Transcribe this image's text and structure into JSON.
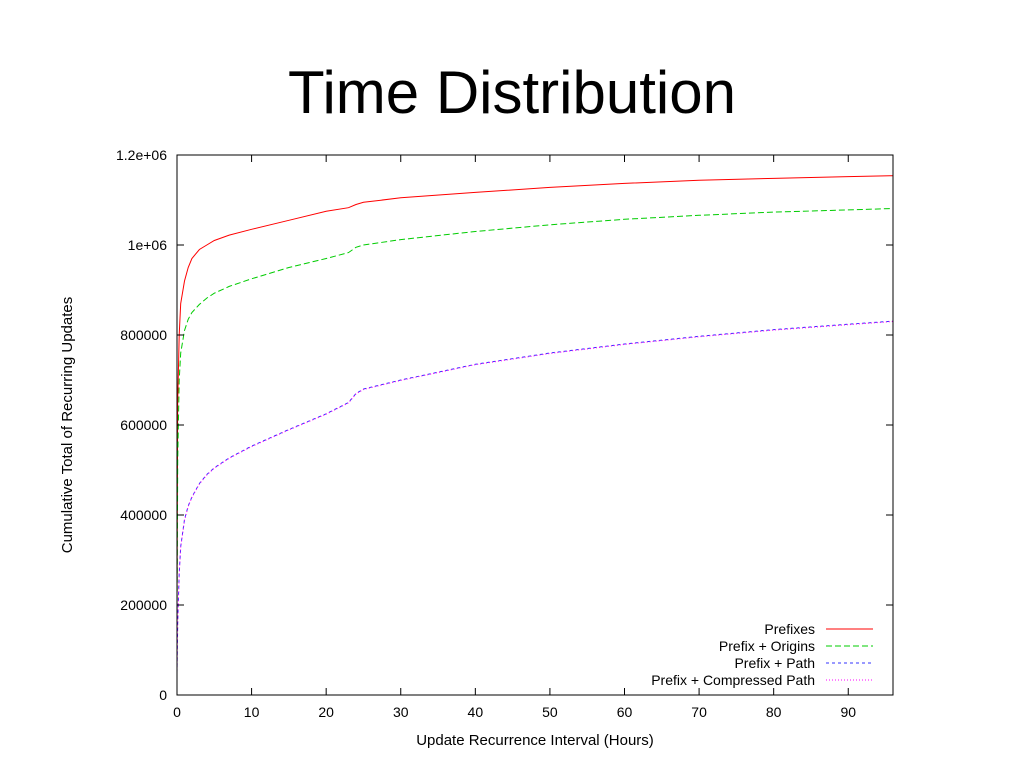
{
  "slide": {
    "title": "Time Distribution"
  },
  "chart_data": {
    "type": "line",
    "title": "Time Distribution",
    "xlabel": "Update Recurrence Interval (Hours)",
    "ylabel": "Cumulative Total of Recurring Updates",
    "xlim": [
      0,
      96
    ],
    "ylim": [
      0,
      1200000
    ],
    "x_ticks": [
      0,
      10,
      20,
      30,
      40,
      50,
      60,
      70,
      80,
      90
    ],
    "y_ticks": [
      0,
      200000,
      400000,
      600000,
      800000,
      1000000,
      1200000
    ],
    "y_tick_labels": [
      "0",
      "200000",
      "400000",
      "600000",
      "800000",
      "1e+06",
      "1.2e+06"
    ],
    "grid": false,
    "legend_position": "bottom-right",
    "series": [
      {
        "name": "Prefixes",
        "color": "#ff0000",
        "dash": "solid",
        "x": [
          0,
          0.1,
          0.3,
          0.5,
          1,
          1.5,
          2,
          3,
          4,
          5,
          7,
          10,
          15,
          20,
          23,
          24,
          25,
          30,
          40,
          50,
          60,
          70,
          80,
          90,
          96
        ],
        "y": [
          200000,
          650000,
          800000,
          870000,
          920000,
          950000,
          970000,
          990000,
          1000000,
          1010000,
          1022000,
          1035000,
          1055000,
          1075000,
          1083000,
          1090000,
          1095000,
          1105000,
          1117000,
          1128000,
          1137000,
          1144000,
          1148000,
          1152000,
          1154000
        ]
      },
      {
        "name": "Prefix + Origins",
        "color": "#00cc00",
        "dash": "dashed",
        "x": [
          0,
          0.1,
          0.3,
          0.5,
          1,
          1.5,
          2,
          3,
          4,
          5,
          7,
          10,
          15,
          20,
          23,
          24,
          25,
          30,
          40,
          50,
          60,
          70,
          80,
          90,
          96
        ],
        "y": [
          150000,
          520000,
          700000,
          760000,
          810000,
          835000,
          850000,
          868000,
          882000,
          893000,
          908000,
          925000,
          950000,
          970000,
          983000,
          995000,
          1000000,
          1012000,
          1030000,
          1045000,
          1057000,
          1066000,
          1073000,
          1078000,
          1081000
        ]
      },
      {
        "name": "Prefix + Path",
        "color": "#3333ff",
        "dash": "dotted",
        "x": [
          0,
          0.1,
          0.3,
          0.5,
          1,
          1.5,
          2,
          3,
          4,
          5,
          7,
          10,
          15,
          20,
          23,
          24,
          25,
          30,
          40,
          50,
          60,
          70,
          80,
          90,
          96
        ],
        "y": [
          50000,
          160000,
          270000,
          330000,
          390000,
          420000,
          440000,
          470000,
          490000,
          505000,
          527000,
          553000,
          590000,
          625000,
          650000,
          670000,
          680000,
          700000,
          735000,
          760000,
          780000,
          797000,
          812000,
          824000,
          831000
        ]
      },
      {
        "name": "Prefix + Compressed Path",
        "color": "#ff00ff",
        "dash": "dotted-fine",
        "x": [
          0,
          0.1,
          0.3,
          0.5,
          1,
          1.5,
          2,
          3,
          4,
          5,
          7,
          10,
          15,
          20,
          23,
          24,
          25,
          30,
          40,
          50,
          60,
          70,
          80,
          90,
          96
        ],
        "y": [
          48000,
          158000,
          268000,
          328000,
          388000,
          419000,
          439000,
          469000,
          489000,
          504000,
          526000,
          552000,
          589000,
          624000,
          649000,
          669000,
          679000,
          699000,
          734000,
          759000,
          779000,
          796000,
          811000,
          823000,
          830000
        ]
      }
    ]
  }
}
